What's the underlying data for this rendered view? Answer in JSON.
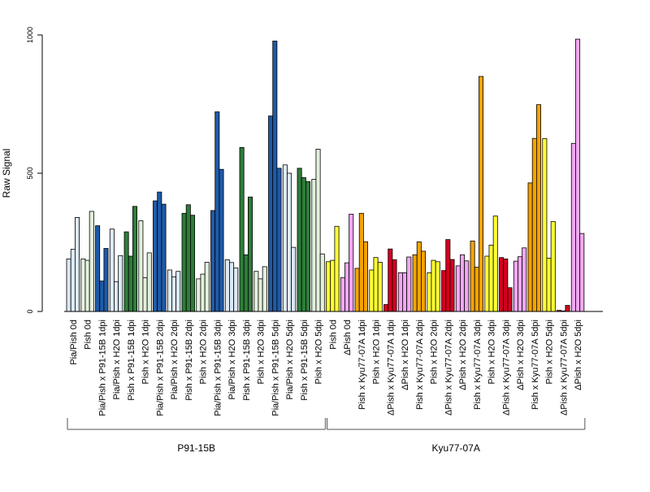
{
  "chart_data": {
    "type": "bar",
    "ylabel": "Raw Signal",
    "ylim": [
      0,
      1000
    ],
    "yticks": [
      0,
      500,
      1000
    ],
    "colors": {
      "light_blue": "#dce9f6",
      "blue": "#1f5aa8",
      "light_green": "#e3f0dc",
      "green": "#2e7d3a",
      "yellow": "#ffff33",
      "pink": "#f2a7f2",
      "orange": "#f5a300",
      "red": "#d40020"
    },
    "categories": [
      "Pia/Pish 0d",
      "Pish 0d",
      "Pia/Pish x P91-15B 1dpi",
      "Pia/Pish x H2O 1dpi",
      "Pish x P91-15B 1dpi",
      "Pish x H2O 1dpi",
      "Pia/Pish x P91-15B 2dpi",
      "Pia/Pish x H2O 2dpi",
      "Pish x P91-15B 2dpi",
      "Pish x H2O 2dpi",
      "Pia/Pish x P91-15B 3dpi",
      "Pia/Pish x H2O 3dpi",
      "Pish x P91-15B 3dpi",
      "Pish x H2O 3dpi",
      "Pia/Pish x P91-15B 5dpi",
      "Pia/Pish x H2O 5dpi",
      "Pish x P91-15B 5dpi",
      "Pish x H2O 5dpi",
      "Pish 0d",
      "ΔPish 0d",
      "Pish x Kyu77-07A 1dpi",
      "Pish x H2O 1dpi",
      "ΔPish x Kyu77-07A 1dpi",
      "ΔPish x H2O 1dpi",
      "Pish x Kyu77-07A 2dpi",
      "Pish x H2O 2dpi",
      "ΔPish x Kyu77-07A 2dpi",
      "ΔPish x H2O 2dpi",
      "Pish x Kyu77-07A 3dpi",
      "Pish x H2O 3dpi",
      "ΔPish x Kyu77-07A 3dpi",
      "ΔPish x H2O 3dpi",
      "Pish x Kyu77-07A 5dpi",
      "Pish x H2O 5dpi",
      "ΔPish x Kyu77-07A 5dpi",
      "ΔPish x H2O 5dpi"
    ],
    "groups": [
      {
        "values": [
          190,
          225,
          340
        ],
        "color": "light_blue"
      },
      {
        "values": [
          190,
          185,
          362
        ],
        "color": "light_green"
      },
      {
        "values": [
          310,
          110,
          228
        ],
        "color": "blue"
      },
      {
        "values": [
          298,
          108,
          202
        ],
        "color": "light_blue"
      },
      {
        "values": [
          288,
          200,
          380
        ],
        "color": "green"
      },
      {
        "values": [
          328,
          122,
          212
        ],
        "color": "light_green"
      },
      {
        "values": [
          400,
          432,
          388
        ],
        "color": "blue"
      },
      {
        "values": [
          150,
          125,
          145
        ],
        "color": "light_blue"
      },
      {
        "values": [
          355,
          386,
          348
        ],
        "color": "green"
      },
      {
        "values": [
          118,
          135,
          178
        ],
        "color": "light_green"
      },
      {
        "values": [
          365,
          722,
          514
        ],
        "color": "blue"
      },
      {
        "values": [
          187,
          177,
          157
        ],
        "color": "light_blue"
      },
      {
        "values": [
          593,
          205,
          414
        ],
        "color": "green"
      },
      {
        "values": [
          145,
          118,
          162
        ],
        "color": "light_green"
      },
      {
        "values": [
          707,
          978,
          518
        ],
        "color": "blue"
      },
      {
        "values": [
          530,
          500,
          232
        ],
        "color": "light_blue"
      },
      {
        "values": [
          518,
          484,
          470
        ],
        "color": "green"
      },
      {
        "values": [
          478,
          587,
          208
        ],
        "color": "light_green"
      },
      {
        "values": [
          180,
          185,
          308
        ],
        "color": "yellow"
      },
      {
        "values": [
          122,
          176,
          352
        ],
        "color": "pink"
      },
      {
        "values": [
          156,
          355,
          252
        ],
        "color": "orange"
      },
      {
        "values": [
          150,
          195,
          178
        ],
        "color": "yellow"
      },
      {
        "values": [
          25,
          226,
          187
        ],
        "color": "red"
      },
      {
        "values": [
          140,
          140,
          197
        ],
        "color": "pink"
      },
      {
        "values": [
          205,
          252,
          218
        ],
        "color": "orange"
      },
      {
        "values": [
          140,
          185,
          180
        ],
        "color": "yellow"
      },
      {
        "values": [
          148,
          260,
          188
        ],
        "color": "red"
      },
      {
        "values": [
          165,
          205,
          183
        ],
        "color": "pink"
      },
      {
        "values": [
          255,
          160,
          850
        ],
        "color": "orange"
      },
      {
        "values": [
          200,
          240,
          345
        ],
        "color": "yellow"
      },
      {
        "values": [
          195,
          190,
          86
        ],
        "color": "red"
      },
      {
        "values": [
          182,
          198,
          230
        ],
        "color": "pink"
      },
      {
        "values": [
          465,
          626,
          748
        ],
        "color": "orange"
      },
      {
        "values": [
          625,
          193,
          325
        ],
        "color": "yellow"
      },
      {
        "values": [
          4,
          2,
          22
        ],
        "color": "red"
      },
      {
        "values": [
          608,
          985,
          282
        ],
        "color": "pink"
      }
    ],
    "sections": [
      {
        "label": "P91-15B",
        "from": 0,
        "to": 17
      },
      {
        "label": "Kyu77-07A",
        "from": 18,
        "to": 35
      }
    ]
  }
}
